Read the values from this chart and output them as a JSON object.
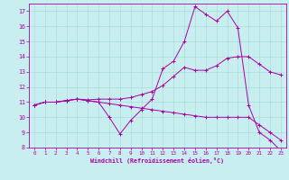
{
  "xlabel": "Windchill (Refroidissement éolien,°C)",
  "bg_color": "#c8eef0",
  "line_color": "#aa00aa",
  "grid_color": "#aadddd",
  "xlim": [
    -0.5,
    23.5
  ],
  "ylim": [
    8,
    17.5
  ],
  "xticks": [
    0,
    1,
    2,
    3,
    4,
    5,
    6,
    7,
    8,
    9,
    10,
    11,
    12,
    13,
    14,
    15,
    16,
    17,
    18,
    19,
    20,
    21,
    22,
    23
  ],
  "yticks": [
    8,
    9,
    10,
    11,
    12,
    13,
    14,
    15,
    16,
    17
  ],
  "line1_x": [
    0,
    1,
    2,
    3,
    4,
    5,
    6,
    7,
    8,
    9,
    10,
    11,
    12,
    13,
    14,
    15,
    16,
    17,
    18,
    19,
    20,
    21,
    22,
    23
  ],
  "line1_y": [
    10.8,
    11.0,
    11.0,
    11.1,
    11.2,
    11.1,
    11.0,
    10.0,
    8.9,
    9.8,
    10.5,
    11.2,
    13.2,
    13.7,
    15.0,
    17.3,
    16.8,
    16.35,
    17.0,
    15.9,
    10.8,
    9.0,
    8.5,
    7.8
  ],
  "line2_x": [
    0,
    1,
    2,
    3,
    4,
    5,
    6,
    7,
    8,
    9,
    10,
    11,
    12,
    13,
    14,
    15,
    16,
    17,
    18,
    19,
    20,
    21,
    22,
    23
  ],
  "line2_y": [
    10.8,
    11.0,
    11.0,
    11.1,
    11.2,
    11.15,
    11.2,
    11.2,
    11.2,
    11.3,
    11.5,
    11.7,
    12.1,
    12.7,
    13.3,
    13.1,
    13.1,
    13.4,
    13.9,
    14.0,
    14.0,
    13.5,
    13.0,
    12.8
  ],
  "line3_x": [
    0,
    1,
    2,
    3,
    4,
    5,
    6,
    7,
    8,
    9,
    10,
    11,
    12,
    13,
    14,
    15,
    16,
    17,
    18,
    19,
    20,
    21,
    22,
    23
  ],
  "line3_y": [
    10.8,
    11.0,
    11.0,
    11.1,
    11.2,
    11.1,
    11.0,
    10.9,
    10.8,
    10.7,
    10.6,
    10.5,
    10.4,
    10.3,
    10.2,
    10.1,
    10.0,
    10.0,
    10.0,
    10.0,
    10.0,
    9.5,
    9.0,
    8.5
  ]
}
